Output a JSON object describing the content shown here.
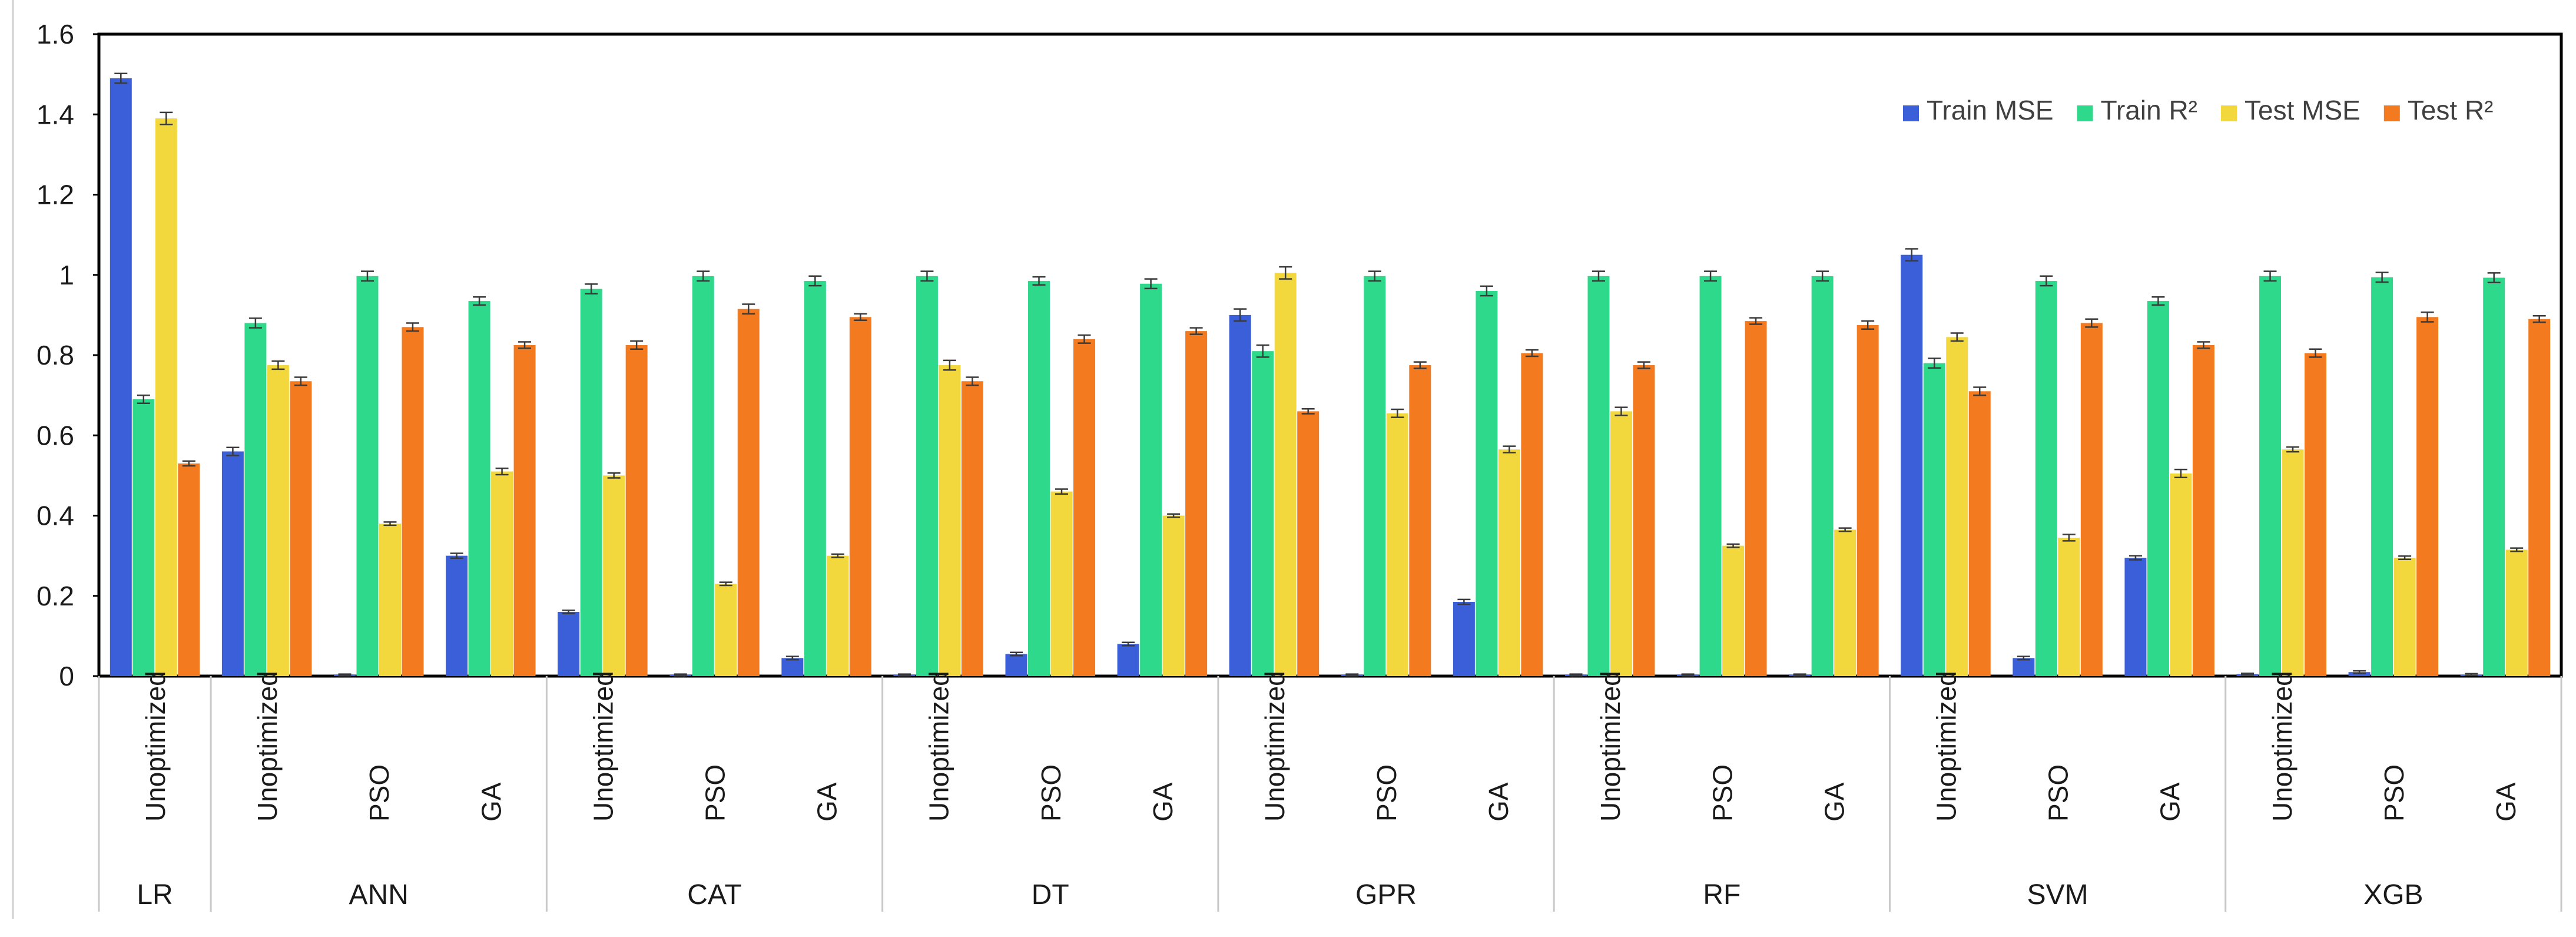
{
  "chart_data": {
    "type": "bar",
    "title": "",
    "xlabel": "",
    "ylabel": "",
    "ylim": [
      0,
      1.6
    ],
    "y_ticks": [
      "0",
      "0.2",
      "0.4",
      "0.6",
      "0.8",
      "1",
      "1.2",
      "1.4",
      "1.6"
    ],
    "legend_position": "top-right",
    "grid": false,
    "error_bars": true,
    "groups": [
      {
        "name": "LR",
        "categories": [
          "Unoptimized"
        ]
      },
      {
        "name": "ANN",
        "categories": [
          "Unoptimized",
          "PSO",
          "GA"
        ]
      },
      {
        "name": "CAT",
        "categories": [
          "Unoptimized",
          "PSO",
          "GA"
        ]
      },
      {
        "name": "DT",
        "categories": [
          "Unoptimized",
          "PSO",
          "GA"
        ]
      },
      {
        "name": "GPR",
        "categories": [
          "Unoptimized",
          "PSO",
          "GA"
        ]
      },
      {
        "name": "RF",
        "categories": [
          "Unoptimized",
          "PSO",
          "GA"
        ]
      },
      {
        "name": "SVM",
        "categories": [
          "Unoptimized",
          "PSO",
          "GA"
        ]
      },
      {
        "name": "XGB",
        "categories": [
          "Unoptimized",
          "PSO",
          "GA"
        ]
      }
    ],
    "series": [
      {
        "name": "Train MSE",
        "color": "#3a5fd9",
        "values": [
          1.49,
          0.56,
          0.003,
          0.3,
          0.16,
          0.003,
          0.045,
          0.003,
          0.055,
          0.08,
          0.9,
          0.003,
          0.185,
          0.003,
          0.003,
          0.003,
          1.05,
          0.045,
          0.295,
          0.005,
          0.01,
          0.004
        ],
        "errors": [
          0.012,
          0.01,
          0.002,
          0.006,
          0.004,
          0.002,
          0.004,
          0.002,
          0.004,
          0.004,
          0.015,
          0.002,
          0.006,
          0.002,
          0.002,
          0.002,
          0.015,
          0.004,
          0.005,
          0.002,
          0.003,
          0.002
        ]
      },
      {
        "name": "Train R²",
        "color": "#2fd98b",
        "values": [
          0.69,
          0.88,
          0.997,
          0.935,
          0.965,
          0.997,
          0.985,
          0.997,
          0.985,
          0.978,
          0.81,
          0.997,
          0.96,
          0.997,
          0.997,
          0.997,
          0.78,
          0.985,
          0.935,
          0.997,
          0.994,
          0.993
        ],
        "errors": [
          0.01,
          0.012,
          0.012,
          0.01,
          0.012,
          0.012,
          0.012,
          0.012,
          0.01,
          0.012,
          0.015,
          0.012,
          0.012,
          0.012,
          0.012,
          0.012,
          0.012,
          0.012,
          0.01,
          0.012,
          0.012,
          0.012
        ]
      },
      {
        "name": "Test MSE",
        "color": "#f2d83c",
        "values": [
          1.39,
          0.775,
          0.38,
          0.51,
          0.5,
          0.23,
          0.3,
          0.775,
          0.46,
          0.4,
          1.005,
          0.655,
          0.565,
          0.66,
          0.325,
          0.365,
          0.845,
          0.345,
          0.505,
          0.565,
          0.295,
          0.315
        ],
        "errors": [
          0.015,
          0.01,
          0.004,
          0.008,
          0.006,
          0.004,
          0.004,
          0.012,
          0.006,
          0.004,
          0.015,
          0.01,
          0.008,
          0.01,
          0.004,
          0.004,
          0.01,
          0.008,
          0.01,
          0.006,
          0.004,
          0.004
        ]
      },
      {
        "name": "Test R²",
        "color": "#f37a1f",
        "values": [
          0.53,
          0.735,
          0.87,
          0.825,
          0.825,
          0.915,
          0.895,
          0.735,
          0.84,
          0.86,
          0.66,
          0.775,
          0.805,
          0.775,
          0.885,
          0.875,
          0.71,
          0.88,
          0.825,
          0.805,
          0.895,
          0.89
        ],
        "errors": [
          0.006,
          0.01,
          0.01,
          0.008,
          0.01,
          0.012,
          0.008,
          0.01,
          0.01,
          0.008,
          0.006,
          0.008,
          0.008,
          0.008,
          0.008,
          0.01,
          0.01,
          0.01,
          0.008,
          0.01,
          0.012,
          0.008
        ]
      }
    ]
  }
}
